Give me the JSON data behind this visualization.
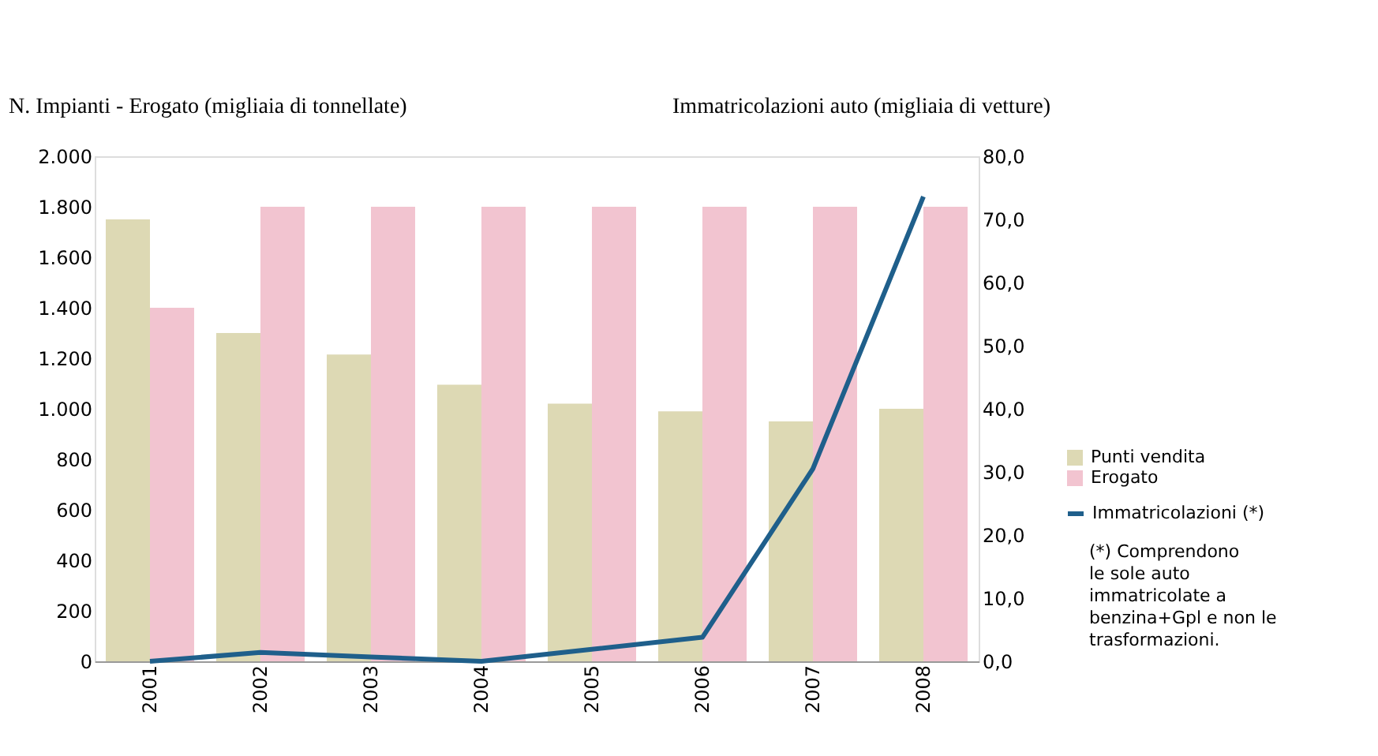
{
  "chart_data": {
    "type": "bar",
    "ylabel": "N. Impianti - Erogato (migliaia di tonnellate)",
    "y2label": "Immatricolazioni auto (migliaia di vetture)",
    "categories": [
      "2001",
      "2002",
      "2003",
      "2004",
      "2005",
      "2006",
      "2007",
      "2008"
    ],
    "series": [
      {
        "name": "Punti vendita",
        "color": "#ddd9b4",
        "values": [
          1750,
          1300,
          1215,
          1095,
          1020,
          990,
          950,
          1000
        ]
      },
      {
        "name": "Erogato",
        "color": "#f2c4d0",
        "values": [
          1400,
          1800,
          1800,
          1800,
          1800,
          1800,
          1800,
          1800
        ]
      },
      {
        "name": "Immatricolazioni (*)",
        "type": "line",
        "axis": "y2",
        "color": "#1f5f8b",
        "values": [
          0,
          1.4,
          0.7,
          0,
          1.9,
          3.8,
          30.5,
          73.6
        ]
      }
    ],
    "ylim": [
      0,
      2000
    ],
    "yticks": [
      {
        "value": 0,
        "label": "0"
      },
      {
        "value": 200,
        "label": "200"
      },
      {
        "value": 400,
        "label": "400"
      },
      {
        "value": 600,
        "label": "600"
      },
      {
        "value": 800,
        "label": "800"
      },
      {
        "value": 1000,
        "label": "1.000"
      },
      {
        "value": 1200,
        "label": "1.200"
      },
      {
        "value": 1400,
        "label": "1.400"
      },
      {
        "value": 1600,
        "label": "1.600"
      },
      {
        "value": 1800,
        "label": "1.800"
      },
      {
        "value": 2000,
        "label": "2.000"
      }
    ],
    "y2lim": [
      0,
      80
    ],
    "y2ticks": [
      {
        "value": 0,
        "label": "0,0"
      },
      {
        "value": 10,
        "label": "10,0"
      },
      {
        "value": 20,
        "label": "20,0"
      },
      {
        "value": 30,
        "label": "30,0"
      },
      {
        "value": 40,
        "label": "40,0"
      },
      {
        "value": 50,
        "label": "50,0"
      },
      {
        "value": 60,
        "label": "60,0"
      },
      {
        "value": 70,
        "label": "70,0"
      },
      {
        "value": 80,
        "label": "80,0"
      }
    ],
    "legend": "right",
    "grid": false,
    "annotations": [
      "(*) Comprendono\nle sole auto\nimmatricolate a\nbenzina+Gpl e non le\ntrasformazioni."
    ]
  }
}
